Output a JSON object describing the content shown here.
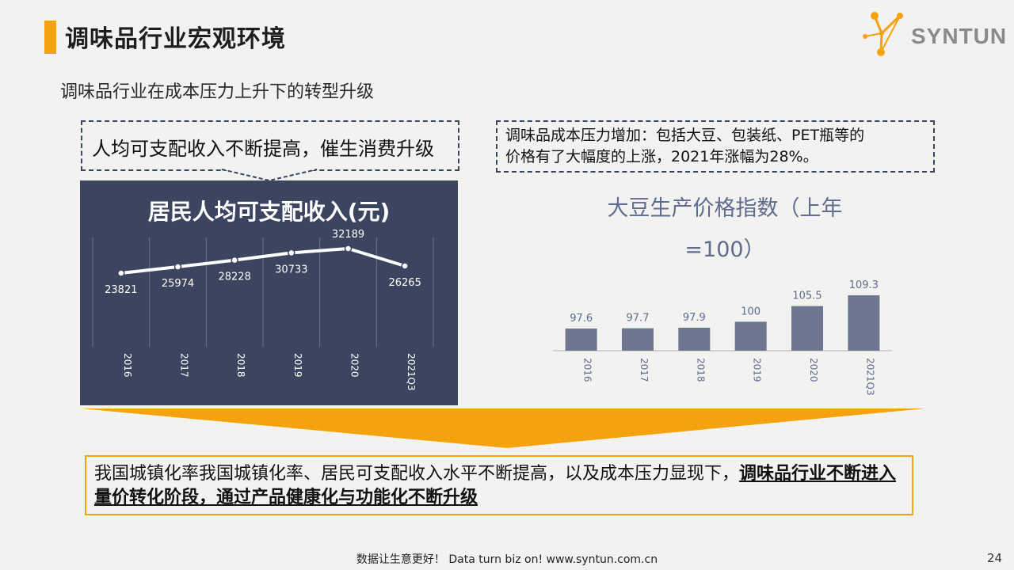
{
  "header": {
    "title": "调味品行业宏观环境",
    "logo_text": "SYNTUN",
    "accent_color": "#f5a20f"
  },
  "subtitle": "调味品行业在成本压力上升下的转型升级",
  "callouts": {
    "left": "人均可支配收入不断提高，催生消费升级",
    "right_line1": "调味品成本压力增加：包括大豆、包装纸、PET瓶等的",
    "right_line2": "价格有了大幅度的上涨，2021年涨幅为28%。"
  },
  "conclusion": {
    "plain": "我国城镇化率我国城镇化率、居民可支配收入水平不断提高，以及成本压力显现下，",
    "emphasis": "调味品行业不断进入量价转化阶段，通过产品健康化与功能化不断升级"
  },
  "footer": {
    "text": "数据让生意更好！ Data turn biz on!  www.syntun.com.cn",
    "page_number": "24"
  },
  "chart_data": [
    {
      "type": "line",
      "title": "居民人均可支配收入(元)",
      "categories": [
        "2016",
        "2017",
        "2018",
        "2019",
        "2020",
        "2021Q3"
      ],
      "values": [
        23821,
        25974,
        28228,
        30733,
        32189,
        26265
      ],
      "grid": "vertical",
      "background": "#3b4560",
      "line_color": "#ffffff"
    },
    {
      "type": "bar",
      "title_line1": "大豆生产价格指数（上年",
      "title_line2": "=100）",
      "categories": [
        "2016",
        "2017",
        "2018",
        "2019",
        "2020",
        "2021Q3"
      ],
      "values": [
        97.6,
        97.7,
        97.9,
        100,
        105.5,
        109.3
      ],
      "bar_color": "#6e778f",
      "label_color": "#5f6b8f"
    }
  ]
}
